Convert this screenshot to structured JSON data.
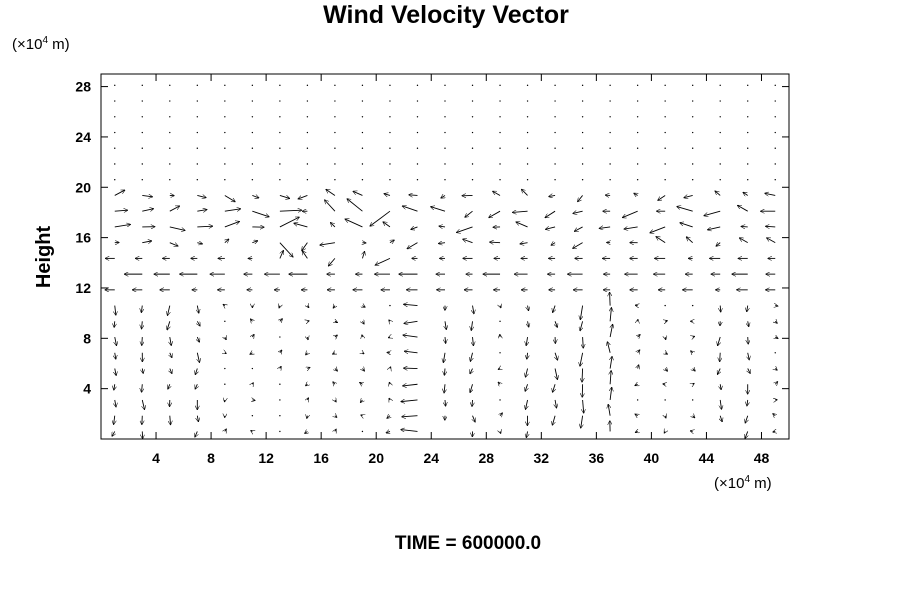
{
  "chart_data": {
    "type": "vector-field",
    "title": "Wind Velocity Vector",
    "ylabel": "Height",
    "xlabel": "",
    "x_unit": {
      "prefix": "(×10",
      "exp": "4",
      "suffix": " m)"
    },
    "y_unit": {
      "prefix": "(×10",
      "exp": "4",
      "suffix": " m)"
    },
    "time_label": "TIME = 600000.0",
    "xlim": [
      0,
      50
    ],
    "ylim": [
      0,
      29
    ],
    "xticks": [
      4,
      8,
      12,
      16,
      20,
      24,
      28,
      32,
      36,
      40,
      44,
      48
    ],
    "yticks": [
      4,
      8,
      12,
      16,
      20,
      24,
      28
    ],
    "grid": false,
    "grid_x_spacing": 2,
    "grid_y_spacing": 1.25,
    "bands": {
      "jet_lower_center": 13,
      "jet_upper_center": 17.5,
      "cells": [
        {
          "x": 2,
          "dir": "down"
        },
        {
          "x": 6,
          "dir": "down"
        },
        {
          "x": 23,
          "dir": "left"
        },
        {
          "x": 26,
          "dir": "down"
        },
        {
          "x": 32,
          "dir": "down"
        },
        {
          "x": 35,
          "dir": "down"
        },
        {
          "x": 37,
          "dir": "up"
        },
        {
          "x": 46,
          "dir": "down"
        }
      ]
    }
  }
}
